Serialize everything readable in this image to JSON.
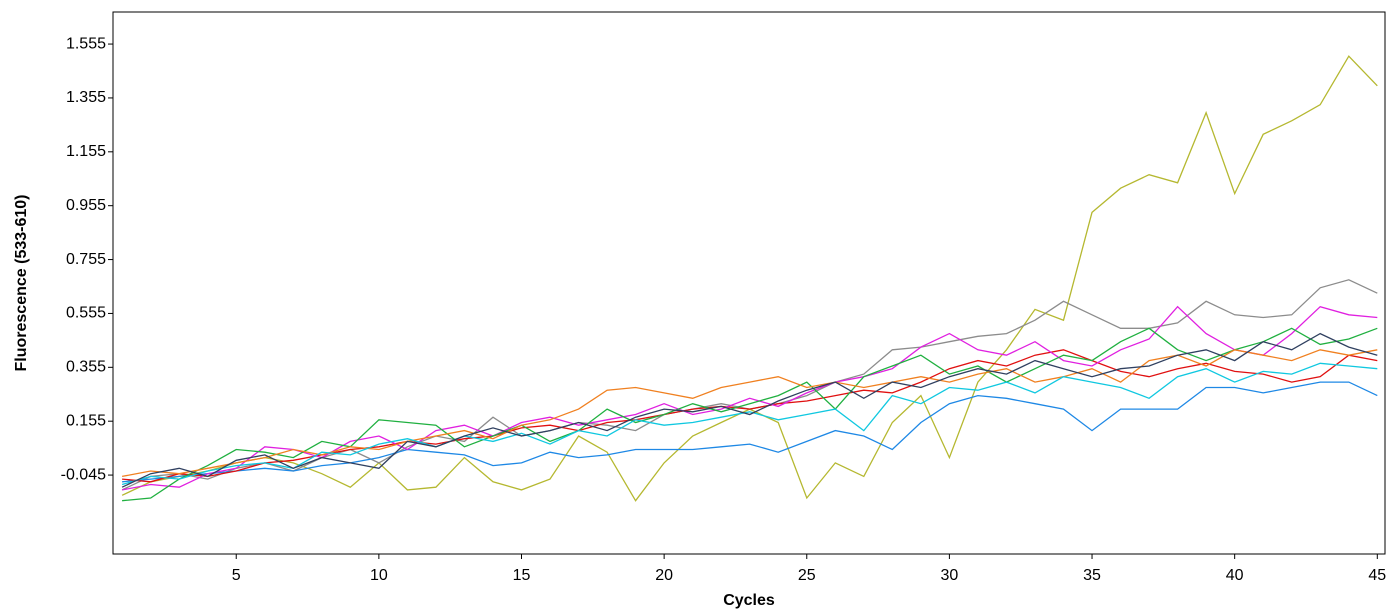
{
  "chart_data": {
    "type": "line",
    "xlabel": "Cycles",
    "ylabel": "Fluorescence (533-610)",
    "x": [
      1,
      2,
      3,
      4,
      5,
      6,
      7,
      8,
      9,
      10,
      11,
      12,
      13,
      14,
      15,
      16,
      17,
      18,
      19,
      20,
      21,
      22,
      23,
      24,
      25,
      26,
      27,
      28,
      29,
      30,
      31,
      32,
      33,
      34,
      35,
      36,
      37,
      38,
      39,
      40,
      41,
      42,
      43,
      44,
      45
    ],
    "xlim": [
      0.68,
      45.27
    ],
    "xticks": [
      5,
      10,
      15,
      20,
      25,
      30,
      35,
      40,
      45
    ],
    "ylim": [
      -0.338,
      1.674
    ],
    "yticks": [
      -0.045,
      0.155,
      0.355,
      0.555,
      0.755,
      0.955,
      1.155,
      1.355,
      1.555
    ],
    "series": [
      {
        "color": "#b5b830",
        "values": [
          -0.12,
          -0.07,
          -0.05,
          -0.03,
          0.0,
          0.02,
          0.0,
          -0.04,
          -0.09,
          0.0,
          -0.1,
          -0.09,
          0.02,
          -0.07,
          -0.1,
          -0.06,
          0.1,
          0.04,
          -0.14,
          0.0,
          0.1,
          0.15,
          0.2,
          0.15,
          -0.13,
          0.0,
          -0.05,
          0.15,
          0.25,
          0.02,
          0.3,
          0.42,
          0.57,
          0.53,
          0.93,
          1.02,
          1.07,
          1.04,
          1.3,
          1.0,
          1.22,
          1.27,
          1.33,
          1.51,
          1.4
        ]
      },
      {
        "color": "#8c8c8c",
        "values": [
          -0.1,
          -0.05,
          -0.04,
          -0.06,
          -0.02,
          0.0,
          -0.03,
          0.02,
          0.05,
          0.0,
          0.06,
          0.1,
          0.08,
          0.17,
          0.1,
          0.12,
          0.15,
          0.14,
          0.12,
          0.18,
          0.2,
          0.22,
          0.2,
          0.22,
          0.25,
          0.3,
          0.33,
          0.42,
          0.43,
          0.45,
          0.47,
          0.48,
          0.53,
          0.6,
          0.55,
          0.5,
          0.5,
          0.52,
          0.6,
          0.55,
          0.54,
          0.55,
          0.65,
          0.68,
          0.63
        ]
      },
      {
        "color": "#1e88e5",
        "values": [
          -0.07,
          -0.06,
          -0.05,
          -0.04,
          -0.03,
          -0.02,
          -0.03,
          -0.01,
          0.0,
          0.02,
          0.05,
          0.04,
          0.03,
          -0.01,
          0.0,
          0.04,
          0.02,
          0.03,
          0.05,
          0.05,
          0.05,
          0.06,
          0.07,
          0.04,
          0.08,
          0.12,
          0.1,
          0.05,
          0.15,
          0.22,
          0.25,
          0.24,
          0.22,
          0.2,
          0.12,
          0.2,
          0.2,
          0.2,
          0.28,
          0.28,
          0.26,
          0.28,
          0.3,
          0.3,
          0.25
        ]
      },
      {
        "color": "#e01010",
        "values": [
          -0.06,
          -0.07,
          -0.04,
          -0.05,
          -0.03,
          0.0,
          0.01,
          0.03,
          0.05,
          0.06,
          0.08,
          0.07,
          0.09,
          0.1,
          0.13,
          0.14,
          0.12,
          0.15,
          0.16,
          0.18,
          0.2,
          0.21,
          0.2,
          0.22,
          0.23,
          0.25,
          0.27,
          0.26,
          0.3,
          0.35,
          0.38,
          0.36,
          0.4,
          0.42,
          0.38,
          0.34,
          0.32,
          0.35,
          0.37,
          0.34,
          0.33,
          0.3,
          0.32,
          0.4,
          0.38
        ]
      },
      {
        "color": "#e020e0",
        "values": [
          -0.1,
          -0.08,
          -0.09,
          -0.04,
          -0.02,
          0.06,
          0.05,
          0.02,
          0.08,
          0.1,
          0.05,
          0.12,
          0.14,
          0.1,
          0.15,
          0.17,
          0.14,
          0.16,
          0.18,
          0.22,
          0.18,
          0.2,
          0.24,
          0.21,
          0.26,
          0.3,
          0.32,
          0.35,
          0.43,
          0.48,
          0.42,
          0.4,
          0.45,
          0.38,
          0.36,
          0.42,
          0.46,
          0.58,
          0.48,
          0.42,
          0.4,
          0.48,
          0.58,
          0.55,
          0.54
        ]
      },
      {
        "color": "#20b040",
        "values": [
          -0.14,
          -0.13,
          -0.06,
          -0.01,
          0.05,
          0.04,
          0.02,
          0.08,
          0.06,
          0.16,
          0.15,
          0.14,
          0.06,
          0.1,
          0.14,
          0.08,
          0.12,
          0.2,
          0.15,
          0.18,
          0.22,
          0.19,
          0.22,
          0.25,
          0.3,
          0.2,
          0.32,
          0.36,
          0.4,
          0.33,
          0.36,
          0.3,
          0.35,
          0.4,
          0.38,
          0.45,
          0.5,
          0.42,
          0.38,
          0.42,
          0.45,
          0.5,
          0.44,
          0.46,
          0.5
        ]
      },
      {
        "color": "#f08020",
        "values": [
          -0.05,
          -0.03,
          -0.04,
          -0.02,
          0.0,
          0.02,
          0.05,
          0.03,
          0.06,
          0.05,
          0.08,
          0.1,
          0.12,
          0.09,
          0.14,
          0.16,
          0.2,
          0.27,
          0.28,
          0.26,
          0.24,
          0.28,
          0.3,
          0.32,
          0.28,
          0.3,
          0.28,
          0.3,
          0.32,
          0.3,
          0.33,
          0.35,
          0.3,
          0.32,
          0.35,
          0.3,
          0.38,
          0.4,
          0.36,
          0.42,
          0.4,
          0.38,
          0.42,
          0.4,
          0.42
        ]
      },
      {
        "color": "#10c8e0",
        "values": [
          -0.08,
          -0.05,
          -0.06,
          -0.03,
          -0.01,
          0.0,
          -0.02,
          0.04,
          0.03,
          0.07,
          0.09,
          0.06,
          0.1,
          0.08,
          0.11,
          0.07,
          0.12,
          0.1,
          0.16,
          0.14,
          0.15,
          0.17,
          0.19,
          0.16,
          0.18,
          0.2,
          0.12,
          0.25,
          0.22,
          0.28,
          0.27,
          0.3,
          0.26,
          0.32,
          0.3,
          0.28,
          0.24,
          0.32,
          0.35,
          0.3,
          0.34,
          0.33,
          0.37,
          0.36,
          0.35
        ]
      },
      {
        "color": "#304060",
        "values": [
          -0.09,
          -0.04,
          -0.02,
          -0.05,
          0.01,
          0.03,
          -0.02,
          0.02,
          0.0,
          -0.02,
          0.08,
          0.06,
          0.1,
          0.13,
          0.1,
          0.12,
          0.15,
          0.12,
          0.17,
          0.2,
          0.19,
          0.21,
          0.18,
          0.23,
          0.27,
          0.3,
          0.24,
          0.3,
          0.28,
          0.32,
          0.35,
          0.33,
          0.38,
          0.35,
          0.32,
          0.35,
          0.36,
          0.4,
          0.42,
          0.38,
          0.45,
          0.42,
          0.48,
          0.43,
          0.4
        ]
      }
    ]
  }
}
